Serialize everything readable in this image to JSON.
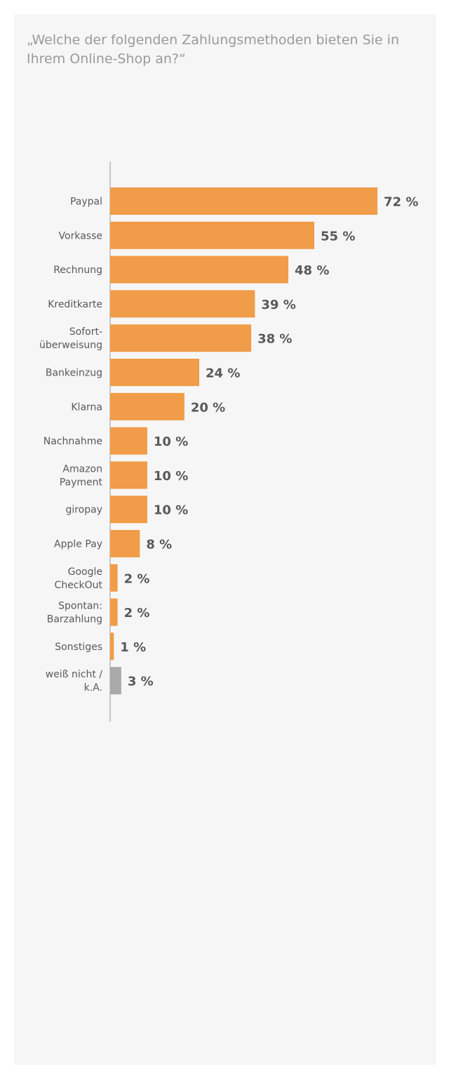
{
  "chart_data": {
    "type": "bar",
    "orientation": "horizontal",
    "title": "„Welche der folgenden Zahlungsmethoden bieten Sie in Ihrem Online-Shop an?“",
    "categories": [
      "Paypal",
      "Vorkasse",
      "Rechnung",
      "Kreditkarte",
      "Sofort-\nüberweisung",
      "Bankeinzug",
      "Klarna",
      "Nachnahme",
      "Amazon\nPayment",
      "giropay",
      "Apple Pay",
      "Google\nCheckOut",
      "Spontan:\nBarzahlung",
      "Sonstiges",
      "weiß nicht /\nk.A."
    ],
    "values": [
      72,
      55,
      48,
      39,
      38,
      24,
      20,
      10,
      10,
      10,
      8,
      2,
      2,
      1,
      3
    ],
    "value_suffix": " %",
    "unit": "%",
    "bar_colors": [
      "#f09c48",
      "#f09c48",
      "#f09c48",
      "#f09c48",
      "#f09c48",
      "#f09c48",
      "#f09c48",
      "#f09c48",
      "#f09c48",
      "#f09c48",
      "#f09c48",
      "#f09c48",
      "#f09c48",
      "#f09c48",
      "#aaaaaa"
    ],
    "colors": {
      "primary": "#f09c48",
      "neutral": "#aaaaaa",
      "axis": "#c8c8c8",
      "text": "#595959",
      "title": "#9a9a9a"
    },
    "xlim": [
      0,
      72
    ],
    "grid": false,
    "legend": "none"
  }
}
